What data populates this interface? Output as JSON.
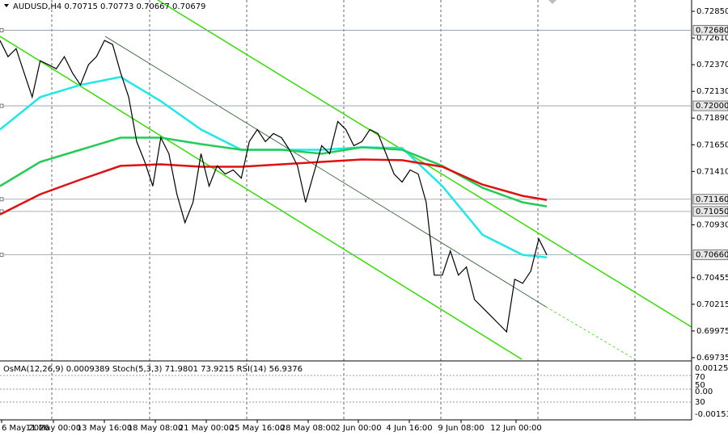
{
  "chart_data": {
    "type": "line",
    "title": "AUDUSD,H4  0.70715 0.70773 0.70667 0.70679",
    "xlim": [
      0,
      86
    ],
    "ylim": [
      0.69713,
      0.72952
    ],
    "yticks": [
      {
        "value": 0.7285,
        "label": "0.72850"
      },
      {
        "value": 0.7261,
        "label": "0.72610"
      },
      {
        "value": 0.7237,
        "label": "0.72370"
      },
      {
        "value": 0.7213,
        "label": "0.72130"
      },
      {
        "value": 0.7189,
        "label": "0.71890"
      },
      {
        "value": 0.7165,
        "label": "0.71650"
      },
      {
        "value": 0.7141,
        "label": "0.71410"
      },
      {
        "value": 0.7093,
        "label": "0.70930"
      },
      {
        "value": 0.70455,
        "label": "0.70455"
      },
      {
        "value": 0.70215,
        "label": "0.70215"
      },
      {
        "value": 0.69975,
        "label": "0.69975"
      },
      {
        "value": 0.69735,
        "label": "0.69735"
      }
    ],
    "levels": [
      {
        "value": 0.7268,
        "label": "0.72680"
      },
      {
        "value": 0.72,
        "label": "0.72000"
      },
      {
        "value": 0.7116,
        "label": "0.71160"
      },
      {
        "value": 0.7105,
        "label": "0.71050"
      },
      {
        "value": 0.7066,
        "label": "0.70660"
      }
    ],
    "x_labels": [
      "6 May 2026",
      "11 May 00:00",
      "13 May 16:00",
      "18 May 08:00",
      "21 May 00:00",
      "25 May 16:00",
      "28 May 08:00",
      "2 Jun 00:00",
      "4 Jun 16:00",
      "9 Jun 08:00",
      "12 Jun 00:00"
    ],
    "series": [
      {
        "color": "#000000",
        "x": [
          0,
          1,
          2,
          3,
          4,
          5,
          6,
          7,
          8,
          9,
          10,
          11,
          12,
          13,
          14,
          15,
          16,
          17,
          18,
          19,
          20,
          21,
          22,
          23,
          24,
          25,
          26,
          27,
          28,
          29,
          30,
          31,
          32,
          33,
          34,
          35,
          36,
          37,
          38,
          39,
          40,
          41,
          42,
          43,
          44,
          45,
          46,
          47,
          48,
          49,
          50,
          51,
          52,
          53,
          54,
          55,
          56,
          57,
          58,
          59,
          60,
          61,
          62,
          63,
          64,
          65,
          66,
          67,
          68
        ],
        "values": [
          0.72588,
          0.72442,
          0.72515,
          0.72297,
          0.72078,
          0.72406,
          0.7237,
          0.72333,
          0.72442,
          0.72297,
          0.72188,
          0.7237,
          0.72442,
          0.72588,
          0.72552,
          0.72297,
          0.72078,
          0.71678,
          0.71496,
          0.71278,
          0.71714,
          0.71569,
          0.71205,
          0.7095,
          0.71132,
          0.71569,
          0.71278,
          0.7146,
          0.71387,
          0.71423,
          0.7135,
          0.71678,
          0.71787,
          0.71678,
          0.71751,
          0.71714,
          0.71605,
          0.7146,
          0.71132,
          0.71387,
          0.71642,
          0.71569,
          0.7186,
          0.71787,
          0.71642,
          0.71678,
          0.71787,
          0.71751,
          0.71569,
          0.71387,
          0.71314,
          0.71423,
          0.71387,
          0.71132,
          0.70477,
          0.70477,
          0.70695,
          0.70477,
          0.7055,
          0.70258,
          0.70186,
          0.70113,
          0.7004,
          0.69967,
          0.7044,
          0.70404,
          0.70513,
          0.70804,
          0.70659
        ]
      },
      {
        "color": "#1ee8e8",
        "x": [
          0,
          5,
          10,
          15,
          20,
          25,
          30,
          35,
          40,
          45,
          50,
          55,
          60,
          65,
          68
        ],
        "values": [
          0.71787,
          0.72078,
          0.72188,
          0.7226,
          0.72042,
          0.71787,
          0.71605,
          0.71605,
          0.71605,
          0.71627,
          0.7162,
          0.71278,
          0.70841,
          0.70659,
          0.70637
        ]
      },
      {
        "color": "#22cc55",
        "x": [
          0,
          5,
          10,
          15,
          20,
          25,
          30,
          35,
          40,
          45,
          50,
          55,
          60,
          65,
          68
        ],
        "values": [
          0.71278,
          0.71496,
          0.71605,
          0.71714,
          0.71714,
          0.71656,
          0.71605,
          0.71605,
          0.71569,
          0.71627,
          0.71605,
          0.7146,
          0.71263,
          0.71132,
          0.71096
        ]
      },
      {
        "color": "#e01010",
        "x": [
          0,
          5,
          10,
          15,
          20,
          25,
          30,
          35,
          40,
          45,
          50,
          55,
          60,
          65,
          68
        ],
        "values": [
          0.71023,
          0.71205,
          0.71336,
          0.7146,
          0.71474,
          0.71452,
          0.71452,
          0.71474,
          0.71496,
          0.71518,
          0.71511,
          0.71452,
          0.71292,
          0.7119,
          0.71154
        ]
      }
    ]
  },
  "indicator": {
    "label": "OsMA(12,26,9) 0.0009389 Stoch(5,3,3) 71.9801 73.9215 RSI(14) 56.9376",
    "axis_labels": [
      "0.00125",
      "70",
      "50",
      "0.00",
      "30",
      "-0.00153"
    ]
  }
}
